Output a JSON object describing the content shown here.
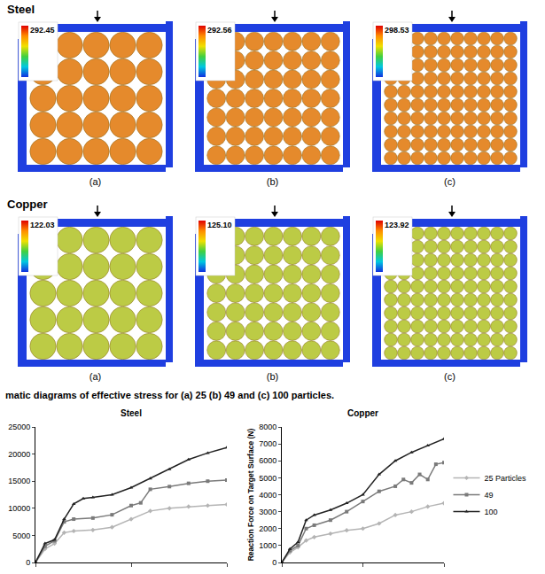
{
  "figure": {
    "groups": [
      {
        "title": "Steel",
        "color": "#e58a2c",
        "panels": [
          {
            "label": "(a)",
            "particles": 25,
            "max_label": "292.45"
          },
          {
            "label": "(b)",
            "particles": 49,
            "max_label": "292.56"
          },
          {
            "label": "(c)",
            "particles": 100,
            "max_label": "298.53"
          }
        ]
      },
      {
        "title": "Copper",
        "color": "#bccb45",
        "panels": [
          {
            "label": "(a)",
            "particles": 25,
            "max_label": "122.03"
          },
          {
            "label": "(b)",
            "particles": 49,
            "max_label": "125.10"
          },
          {
            "label": "(c)",
            "particles": 100,
            "max_label": "123.92"
          }
        ]
      }
    ],
    "caption": "matic diagrams of effective stress for (a) 25 (b) 49 and (c) 100 particles."
  },
  "chart_data": [
    {
      "type": "line",
      "title": "Steel",
      "xlim": [
        0,
        10
      ],
      "xticks": [
        0,
        5,
        10
      ],
      "ylim": [
        0,
        25000
      ],
      "yticks": [
        0,
        5000,
        10000,
        15000,
        20000,
        25000
      ],
      "grid": false,
      "tick_labels": "y",
      "series": [
        {
          "name": "25 Particles",
          "color": "#b4b4b4",
          "marker": "diamond",
          "x": [
            0,
            0.5,
            1,
            1.5,
            2,
            3,
            4,
            5,
            6,
            7,
            8,
            9,
            10
          ],
          "values": [
            0,
            2500,
            3500,
            5500,
            5800,
            6000,
            6500,
            8000,
            9500,
            10000,
            10300,
            10500,
            10700
          ]
        },
        {
          "name": "49",
          "color": "#7a7a7a",
          "marker": "square",
          "x": [
            0,
            0.5,
            1,
            1.5,
            2,
            3,
            4,
            5,
            5.5,
            6,
            7,
            8,
            9,
            10
          ],
          "values": [
            0,
            3000,
            4000,
            7500,
            8000,
            8200,
            8800,
            10500,
            11000,
            13500,
            14000,
            14600,
            15000,
            15200
          ]
        },
        {
          "name": "100",
          "color": "#222222",
          "marker": "triangle-up",
          "x": [
            0,
            0.5,
            1,
            1.5,
            2,
            2.5,
            3,
            4,
            5,
            6,
            7,
            8,
            9,
            10
          ],
          "values": [
            0,
            3500,
            4200,
            8000,
            10800,
            11800,
            12000,
            12500,
            13800,
            15500,
            17200,
            19000,
            20200,
            21200
          ]
        }
      ]
    },
    {
      "type": "line",
      "title": "Copper",
      "y_label": "Reaction Force on Target Surface (N)",
      "xlim": [
        0,
        10
      ],
      "xticks": [
        0,
        5,
        10
      ],
      "ylim": [
        0,
        8000
      ],
      "yticks": [
        0,
        1000,
        2000,
        3000,
        4000,
        5000,
        6000,
        7000,
        8000
      ],
      "grid": false,
      "tick_labels": "y",
      "legend": "right",
      "series": [
        {
          "name": "25 Particles",
          "color": "#b4b4b4",
          "marker": "diamond",
          "x": [
            0,
            0.5,
            1,
            1.5,
            2,
            3,
            4,
            5,
            6,
            7,
            8,
            9,
            10
          ],
          "values": [
            0,
            600,
            900,
            1300,
            1500,
            1700,
            1900,
            2000,
            2300,
            2800,
            3000,
            3300,
            3500
          ]
        },
        {
          "name": "49",
          "color": "#7a7a7a",
          "marker": "square",
          "x": [
            0,
            0.5,
            1,
            1.5,
            2,
            3,
            4,
            5,
            6,
            7,
            7.5,
            8,
            8.5,
            9,
            9.5,
            10
          ],
          "values": [
            0,
            700,
            1000,
            2000,
            2200,
            2500,
            3000,
            3600,
            4200,
            4500,
            4900,
            4700,
            5200,
            4900,
            5800,
            5900
          ]
        },
        {
          "name": "100",
          "color": "#222222",
          "marker": "triangle-up",
          "x": [
            0,
            0.5,
            1,
            1.5,
            2,
            3,
            4,
            5,
            6,
            7,
            8,
            9,
            10
          ],
          "values": [
            0,
            800,
            1200,
            2500,
            2800,
            3100,
            3500,
            4000,
            5200,
            6000,
            6500,
            6900,
            7300
          ]
        }
      ]
    }
  ]
}
